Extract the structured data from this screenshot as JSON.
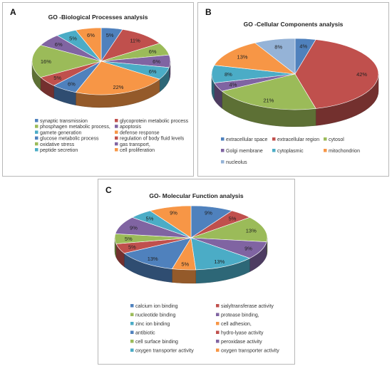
{
  "panels": [
    {
      "letter": "A",
      "title": "GO -Biological Processes analysis"
    },
    {
      "letter": "B",
      "title": "GO -Cellular Components  analysis"
    },
    {
      "letter": "C",
      "title": "GO- Molecular Function analysis"
    }
  ],
  "chart_data": [
    {
      "type": "pie",
      "title": "GO -Biological Processes analysis",
      "categories": [
        "synaptic transmission",
        "glycoprotein metabolic process",
        "phosphagen metabolic process,",
        "apoptosis",
        "gamete generation",
        "defense response",
        "glucose metabolic process",
        "regulation of body fluid levels",
        "oxidative stress",
        "gas transport,",
        "peptide secretion",
        "cell proliferation"
      ],
      "values": [
        5,
        11,
        6,
        6,
        6,
        22,
        6,
        5,
        16,
        6,
        5,
        6
      ],
      "labels": [
        "5%",
        "11%",
        "6%",
        "6%",
        "6%",
        "22%",
        "6%",
        "5%",
        "16%",
        "6%",
        "5%",
        "6%"
      ],
      "colors": [
        "#4F81BD",
        "#C0504D",
        "#9BBB59",
        "#8064A2",
        "#4BACC6",
        "#F79646",
        "#4F81BD",
        "#C0504D",
        "#9BBB59",
        "#8064A2",
        "#4BACC6",
        "#F79646"
      ],
      "legend_position": "bottom"
    },
    {
      "type": "pie",
      "title": "GO -Cellular Components  analysis",
      "categories": [
        "extracellular space",
        "extracellular region",
        "cytosol",
        "Golgi membrane",
        "cytoplasmic",
        "mitochondrion",
        "nucleolus"
      ],
      "values": [
        4,
        42,
        21,
        4,
        8,
        13,
        8
      ],
      "labels": [
        "4%",
        "42%",
        "21%",
        "4%",
        "8%",
        "13%",
        "8%"
      ],
      "colors": [
        "#4F81BD",
        "#C0504D",
        "#9BBB59",
        "#8064A2",
        "#4BACC6",
        "#F79646",
        "#95B3D7"
      ],
      "legend_position": "bottom"
    },
    {
      "type": "pie",
      "title": "GO- Molecular Function analysis",
      "categories": [
        "calcium ion binding",
        "sialyltransferase activity",
        "nucleotide binding",
        "protease binding,",
        "zinc ion binding",
        "cell adhesion,",
        "antibiotic",
        "hydro-lyase activity",
        "cell surface binding",
        "peroxidase activity",
        "oxygen transporter activity",
        "oxygen transporter activity"
      ],
      "values": [
        9,
        5,
        13,
        9,
        13,
        5,
        13,
        5,
        5,
        9,
        5,
        9
      ],
      "labels": [
        "9%",
        "5%",
        "13%",
        "9%",
        "13%",
        "5%",
        "13%",
        "5%",
        "5%",
        "9%",
        "5%",
        "9%"
      ],
      "colors": [
        "#4F81BD",
        "#C0504D",
        "#9BBB59",
        "#8064A2",
        "#4BACC6",
        "#F79646",
        "#4F81BD",
        "#C0504D",
        "#9BBB59",
        "#8064A2",
        "#4BACC6",
        "#F79646"
      ],
      "legend_position": "bottom"
    }
  ]
}
